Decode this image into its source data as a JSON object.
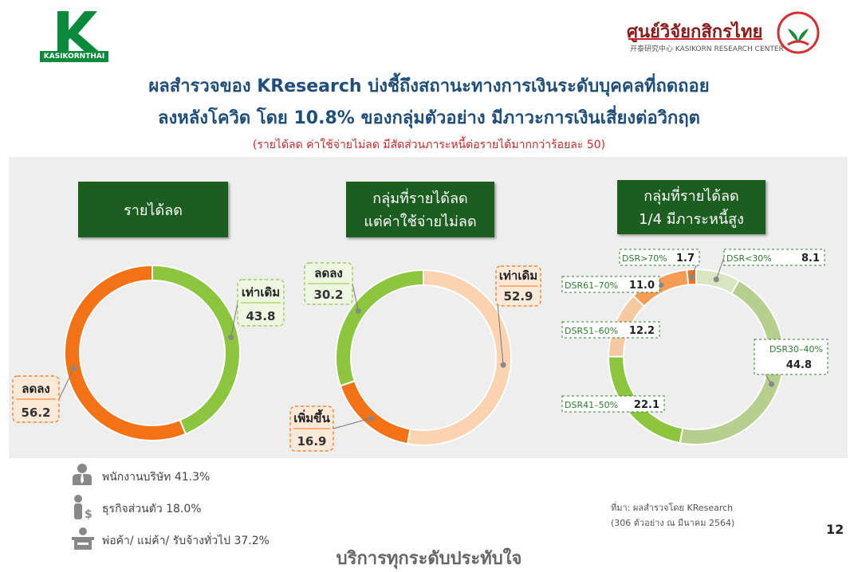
{
  "header": {
    "brand_left": "KASIKORNTHAI",
    "brand_right_th": "ศูนย์วิจัยกสิกรไทย",
    "brand_right_en": "开泰研究中心 KASIKORN RESEARCH CENTER"
  },
  "title_line1": "ผลสำรวจของ KResearch บ่งชี้ถึงสถานะทางการเงินระดับบุคคลที่ถดถอย",
  "title_line2": "ลงหลังโควิด โดย 10.8% ของกลุ่มตัวอย่าง มีภาวะการเงินเสี่ยงต่อวิกฤต",
  "subtitle": "(รายได้ลด ค่าใช้จ่ายไม่ลด มีสัดส่วนภาระหนี้ต่อรายได้มากกว่าร้อยละ 50)",
  "colors": {
    "dark_orange": "#f47216",
    "green": "#8cc63f",
    "peach": "#fbd1a8",
    "light_peach": "#f8c9a0",
    "header_green": "#1b5e20",
    "title_blue": "#1f4e79",
    "subtitle_red": "#c62828"
  },
  "chart_data": [
    {
      "type": "pie",
      "title": "รายได้ลด",
      "series": [
        {
          "label": "เท่าเดิม",
          "value": 43.8,
          "value_text": "43.8",
          "color": "#8cc63f"
        },
        {
          "label": "ลดลง",
          "value": 56.2,
          "value_text": "56.2",
          "color": "#f47216"
        }
      ]
    },
    {
      "type": "pie",
      "title": "กลุ่มที่รายได้ลด แต่ค่าใช้จ่ายไม่ลด",
      "title_lines": [
        "กลุ่มที่รายได้ลด",
        "แต่ค่าใช้จ่ายไม่ลด"
      ],
      "series": [
        {
          "label": "เท่าเดิม",
          "value": 52.9,
          "value_text": "52.9",
          "color": "#fbd3b0"
        },
        {
          "label": "เพิ่มขึ้น",
          "value": 16.9,
          "value_text": "16.9",
          "color": "#f47216"
        },
        {
          "label": "ลดลง",
          "value": 30.2,
          "value_text": "30.2",
          "color": "#8cc63f"
        }
      ]
    },
    {
      "type": "pie",
      "title": "กลุ่มที่รายได้ลด 1/4 มีภาระหนี้สูง",
      "title_lines": [
        "กลุ่มที่รายได้ลด",
        "1/4 มีภาระหนี้สูง"
      ],
      "series": [
        {
          "label": "DSR<30%",
          "value": 8.1,
          "value_text": "8.1",
          "color": "#d8e6c2"
        },
        {
          "label": "DSR30–40%",
          "value": 44.8,
          "value_text": "44.8",
          "color": "#b7cf8e"
        },
        {
          "label": "DSR41–50%",
          "value": 22.1,
          "value_text": "22.1",
          "color": "#8cc63f"
        },
        {
          "label": "DSR51–60%",
          "value": 12.2,
          "value_text": "12.2",
          "color": "#f8c9a0"
        },
        {
          "label": "DSR61–70%",
          "value": 11.0,
          "value_text": "11.0",
          "color": "#f59d55"
        },
        {
          "label": "DSR>70%",
          "value": 1.7,
          "value_text": "1.7",
          "color": "#f47216"
        }
      ]
    }
  ],
  "legend": [
    {
      "icon": "office-worker-icon",
      "text": "พนักงานบริษัท 41.3%"
    },
    {
      "icon": "business-owner-icon",
      "text": "ธุรกิจส่วนตัว 18.0%"
    },
    {
      "icon": "merchant-icon",
      "text": "พ่อค้า/ แม่ค้า/ รับจ้างทั่วไป 37.2%"
    }
  ],
  "source_line1": "ที่มา: ผลสำรวจโดย KResearch",
  "source_line2": "(306 ตัวอย่าง ณ มีนาคม 2564)",
  "page_number": "12",
  "slogan": "บริการทุกระดับประทับใจ"
}
